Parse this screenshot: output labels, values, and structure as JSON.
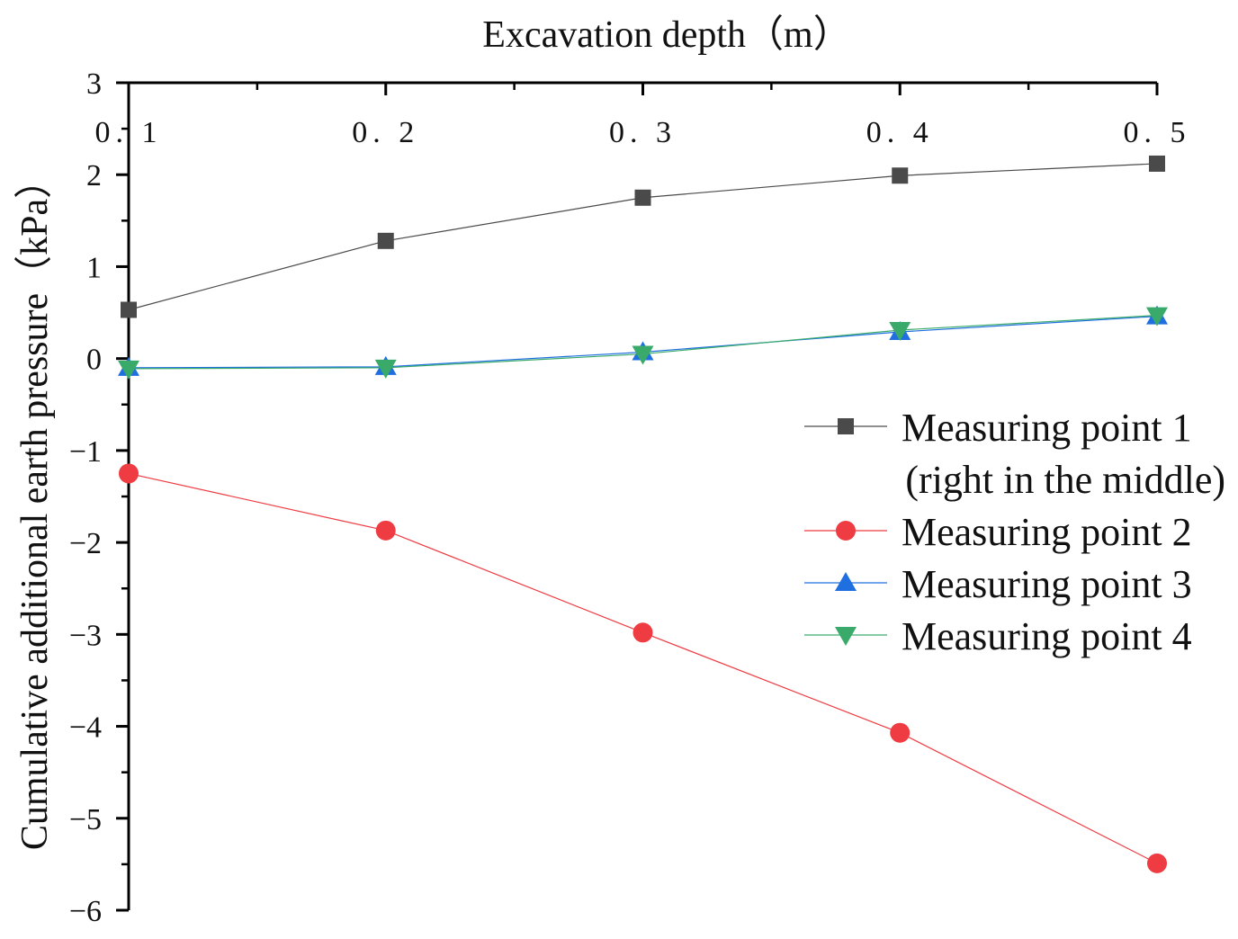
{
  "chart_data": {
    "type": "line",
    "title": "",
    "xlabel": "Excavation depth（m）",
    "ylabel": "Cumulative additional earth pressure（kPa）",
    "x": [
      0.1,
      0.2,
      0.3,
      0.4,
      0.5
    ],
    "x_tick_labels": [
      "0. 1",
      "0. 2",
      "0. 3",
      "0. 4",
      "0. 5"
    ],
    "xlim": [
      0.1,
      0.5
    ],
    "ylim": [
      -6,
      3
    ],
    "y_ticks": [
      3,
      2,
      1,
      0,
      -1,
      -2,
      -3,
      -4,
      -5,
      -6
    ],
    "y_tick_labels": [
      "3",
      "2",
      "1",
      "0",
      "−1",
      "−2",
      "−3",
      "−4",
      "−5",
      "−6"
    ],
    "x_axis_position": "top",
    "grid": false,
    "legend_position": "right",
    "series": [
      {
        "name": "Measuring point 1 (right in the middle)",
        "legend_lines": [
          "Measuring point 1",
          "(right in the middle)"
        ],
        "marker": "square",
        "color": "#4a4a4a",
        "values": [
          0.53,
          1.28,
          1.75,
          1.99,
          2.12
        ]
      },
      {
        "name": "Measuring point 2",
        "legend_lines": [
          "Measuring point 2"
        ],
        "marker": "circle",
        "color": "#ef3b42",
        "values": [
          -1.25,
          -1.87,
          -2.98,
          -4.07,
          -5.49
        ]
      },
      {
        "name": "Measuring point 3",
        "legend_lines": [
          "Measuring point 3"
        ],
        "marker": "triangle-up",
        "color": "#1f6fe0",
        "values": [
          -0.1,
          -0.09,
          0.07,
          0.29,
          0.46
        ]
      },
      {
        "name": "Measuring point 4",
        "legend_lines": [
          "Measuring point 4"
        ],
        "marker": "triangle-down",
        "color": "#3aaa6a",
        "values": [
          -0.11,
          -0.1,
          0.05,
          0.31,
          0.47
        ]
      }
    ]
  }
}
